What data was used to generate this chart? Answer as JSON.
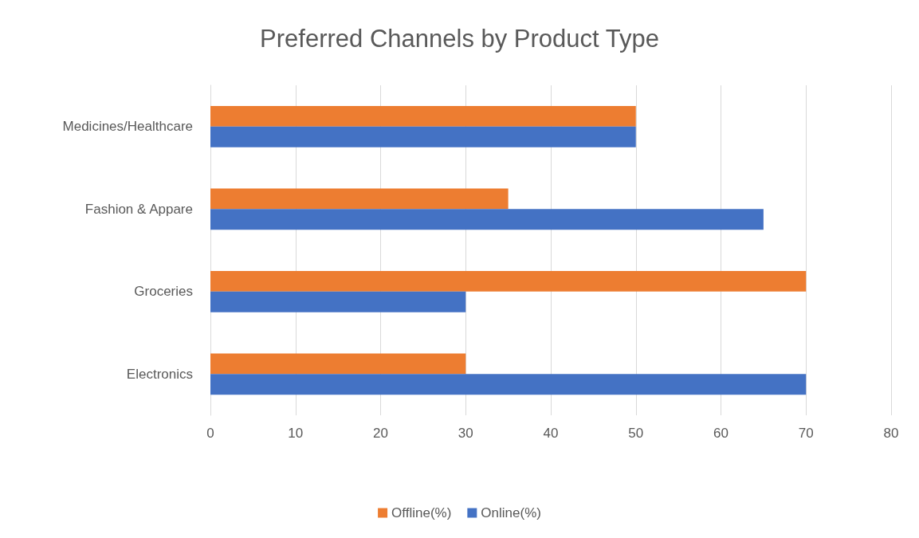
{
  "chart_data": {
    "type": "bar",
    "orientation": "horizontal",
    "title": "Preferred Channels by Product Type",
    "categories": [
      "Medicines/Healthcare",
      "Fashion & Appare",
      "Groceries",
      "Electronics"
    ],
    "series": [
      {
        "name": "Offline(%)",
        "color": "#ed7d31",
        "values": [
          50,
          35,
          70,
          30
        ]
      },
      {
        "name": "Online(%)",
        "color": "#4472c4",
        "values": [
          50,
          65,
          30,
          70
        ]
      }
    ],
    "xlim": [
      0,
      80
    ],
    "xticks": [
      0,
      10,
      20,
      30,
      40,
      50,
      60,
      70,
      80
    ],
    "grid": "x",
    "legend": "bottom"
  }
}
